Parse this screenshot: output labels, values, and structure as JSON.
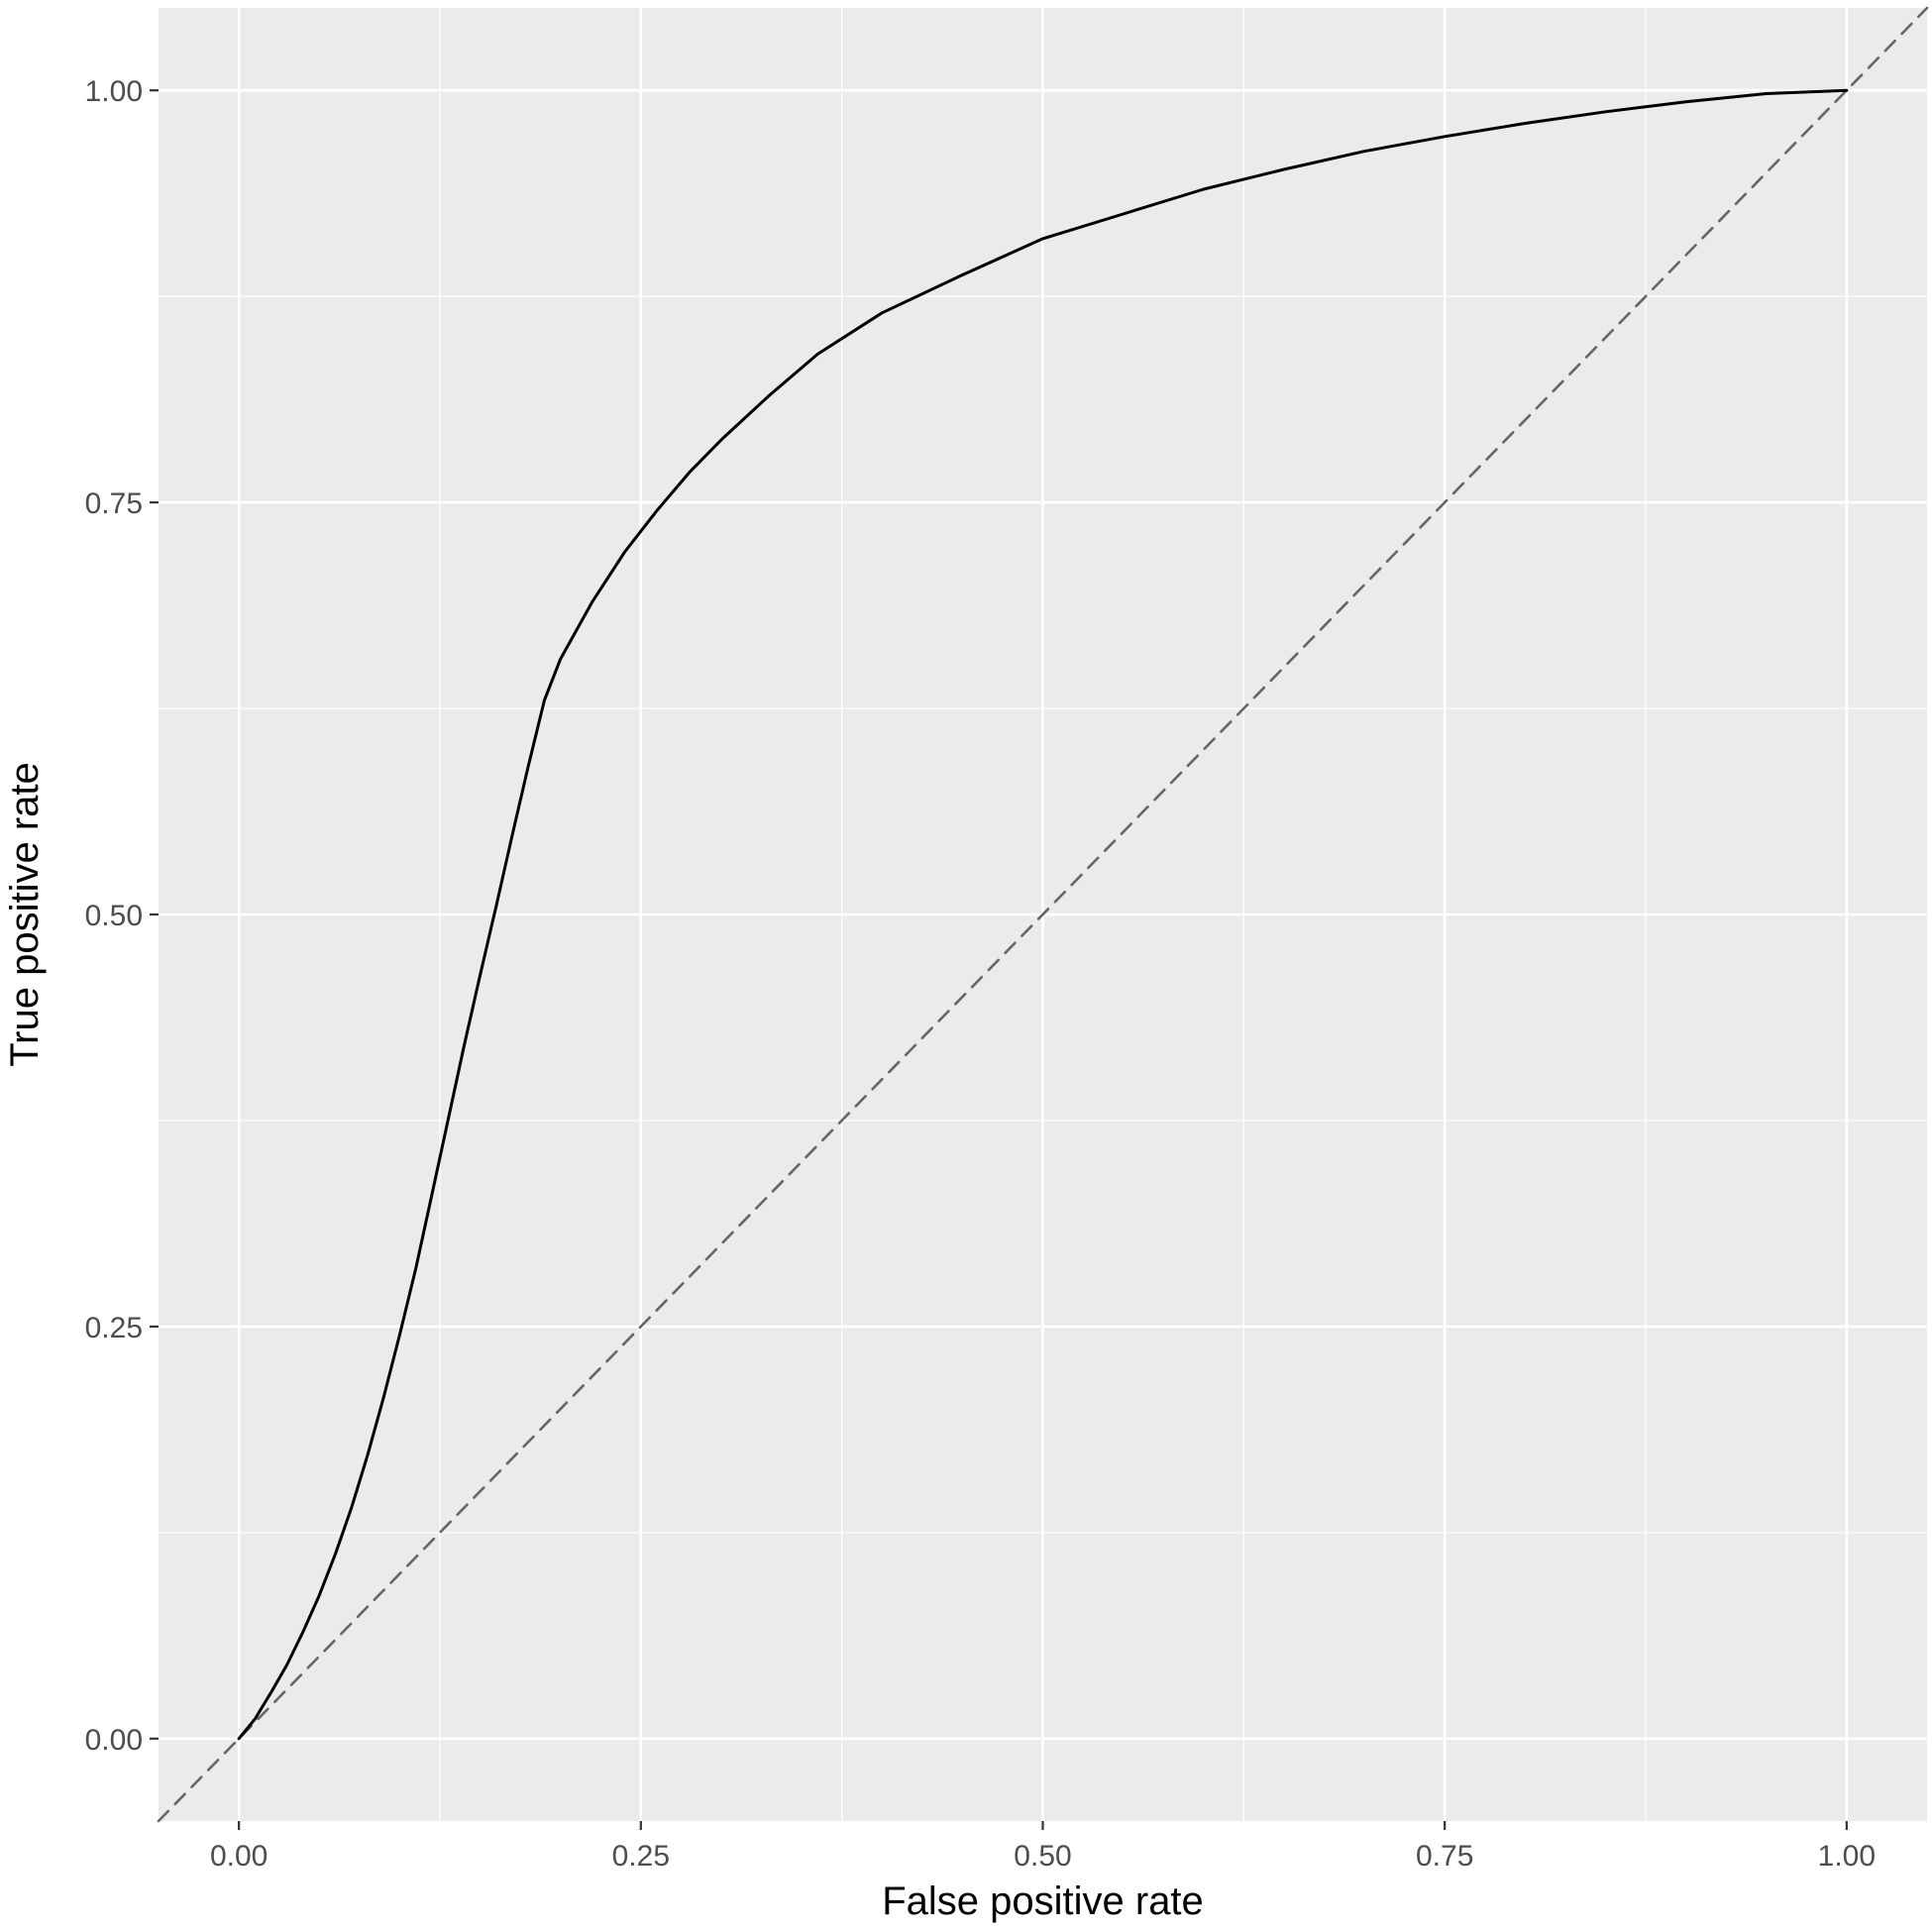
{
  "chart_data": {
    "type": "line",
    "title": "",
    "xlabel": "False positive rate",
    "ylabel": "True positive rate",
    "xlim": [
      -0.05,
      1.05
    ],
    "ylim": [
      -0.05,
      1.05
    ],
    "x_ticks": [
      {
        "value": 0.0,
        "label": "0.00"
      },
      {
        "value": 0.25,
        "label": "0.25"
      },
      {
        "value": 0.5,
        "label": "0.50"
      },
      {
        "value": 0.75,
        "label": "0.75"
      },
      {
        "value": 1.0,
        "label": "1.00"
      }
    ],
    "y_ticks": [
      {
        "value": 0.0,
        "label": "0.00"
      },
      {
        "value": 0.25,
        "label": "0.25"
      },
      {
        "value": 0.5,
        "label": "0.50"
      },
      {
        "value": 0.75,
        "label": "0.75"
      },
      {
        "value": 1.0,
        "label": "1.00"
      }
    ],
    "minor_gridlines": [
      0.125,
      0.375,
      0.625,
      0.875
    ],
    "grid": true,
    "panel_background": "#ebebeb",
    "gridline_color": "#ffffff",
    "series": [
      {
        "line_style": "solid",
        "color": "#000000",
        "x": [
          0.0,
          0.01,
          0.02,
          0.03,
          0.04,
          0.05,
          0.06,
          0.07,
          0.08,
          0.09,
          0.1,
          0.11,
          0.12,
          0.13,
          0.14,
          0.15,
          0.16,
          0.17,
          0.18,
          0.19,
          0.2,
          0.22,
          0.24,
          0.26,
          0.28,
          0.3,
          0.33,
          0.36,
          0.4,
          0.45,
          0.5,
          0.55,
          0.6,
          0.65,
          0.7,
          0.75,
          0.8,
          0.85,
          0.9,
          0.95,
          1.0
        ],
        "y": [
          0.0,
          0.012,
          0.028,
          0.045,
          0.065,
          0.087,
          0.112,
          0.14,
          0.172,
          0.207,
          0.245,
          0.285,
          0.33,
          0.375,
          0.42,
          0.463,
          0.505,
          0.548,
          0.59,
          0.63,
          0.655,
          0.69,
          0.72,
          0.745,
          0.768,
          0.788,
          0.815,
          0.84,
          0.865,
          0.888,
          0.91,
          0.925,
          0.94,
          0.952,
          0.963,
          0.972,
          0.98,
          0.987,
          0.993,
          0.998,
          1.0
        ]
      },
      {
        "line_style": "dashed",
        "color": "#666666",
        "x": [
          -0.05,
          1.05
        ],
        "y": [
          -0.05,
          1.05
        ]
      }
    ]
  }
}
